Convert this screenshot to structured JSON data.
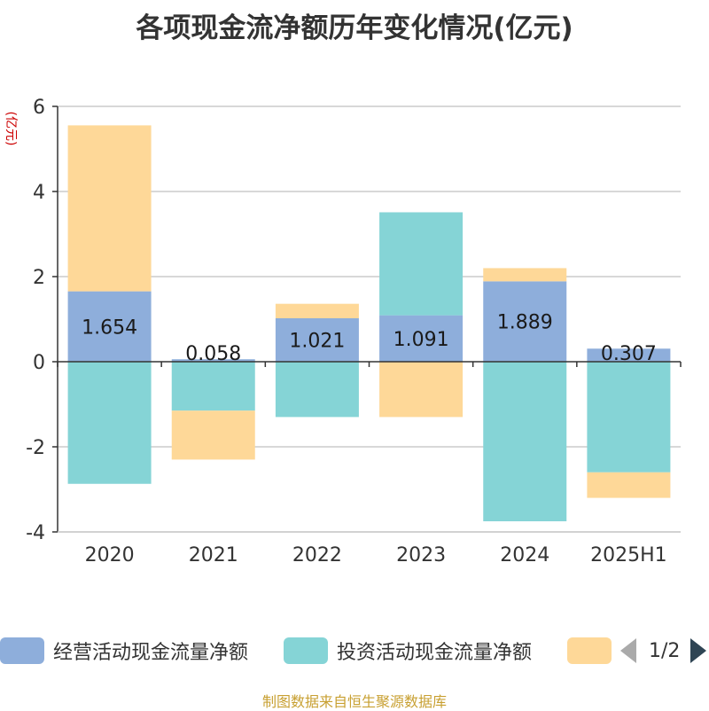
{
  "title": "各项现金流净额历年变化情况(亿元)",
  "source": "制图数据来自恒生聚源数据库",
  "pager": {
    "text": "1/2"
  },
  "chart_data": {
    "type": "bar",
    "stacked": true,
    "title": "各项现金流净额历年变化情况(亿元)",
    "ylabel": "(亿元)",
    "categories": [
      "2020",
      "2021",
      "2022",
      "2023",
      "2024",
      "2025H1"
    ],
    "ylim": [
      -4,
      6
    ],
    "yticks": [
      -4,
      -2,
      0,
      2,
      4,
      6
    ],
    "ytick_labels": [
      "-4",
      "-2",
      "0",
      "2",
      "4",
      "6"
    ],
    "grid": true,
    "legend_position": "bottom",
    "series": [
      {
        "name": "经营活动现金流量净额",
        "color": "#8eaedb",
        "values": [
          1.654,
          0.058,
          1.021,
          1.091,
          1.889,
          0.307
        ],
        "labels": [
          "1.654",
          "0.058",
          "1.021",
          "1.091",
          "1.889",
          "0.307"
        ]
      },
      {
        "name": "投资活动现金流量净额",
        "color": "#85d4d6",
        "values": [
          -2.87,
          -1.15,
          -1.3,
          2.42,
          -3.75,
          -2.6
        ]
      },
      {
        "name": "",
        "color": "#fed898",
        "values": [
          3.9,
          -1.15,
          0.34,
          -1.3,
          0.31,
          -0.6
        ]
      }
    ]
  }
}
